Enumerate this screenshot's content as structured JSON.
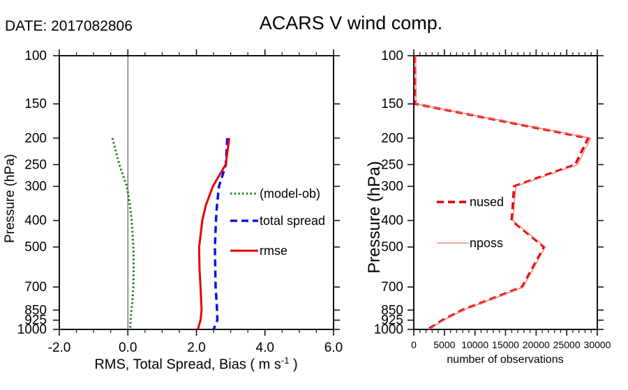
{
  "header": {
    "date_label": "DATE: 2017082806",
    "title": "ACARS V wind comp."
  },
  "chart_data": [
    {
      "type": "line",
      "id": "left-panel",
      "xlabel_parts": {
        "main": "RMS, Total Spread, Bias ( m s",
        "sup": "-1",
        "end": " )"
      },
      "ylabel": "Pressure (hPa)",
      "x_axis": {
        "min": -2.0,
        "max": 6.0,
        "major_step": 2.0,
        "minor_step": 0.5,
        "tick_values": [
          -2.0,
          0.0,
          2.0,
          4.0,
          6.0
        ],
        "tick_labels": [
          "-2.0",
          "0.0",
          "2.0",
          "4.0",
          "6.0"
        ]
      },
      "y_axis": {
        "scale": "log",
        "min": 100,
        "max": 1000,
        "tick_values": [
          100,
          150,
          200,
          250,
          300,
          400,
          500,
          700,
          850,
          925,
          1000
        ],
        "tick_labels": [
          "100",
          "150",
          "200",
          "250",
          "300",
          "400",
          "500",
          "700",
          "850",
          "925",
          "1000"
        ]
      },
      "reference_line_x": 0.0,
      "series": [
        {
          "name": "(model-ob)",
          "color": "#1e8022",
          "style": "dotted",
          "width": 3,
          "pressure": [
            200,
            250,
            300,
            350,
            400,
            500,
            600,
            700,
            800,
            850,
            925,
            1000
          ],
          "values": [
            -0.45,
            -0.25,
            -0.03,
            0.06,
            0.11,
            0.16,
            0.17,
            0.16,
            0.13,
            0.1,
            0.08,
            0.06
          ]
        },
        {
          "name": "total spread",
          "color": "#0f0fe8",
          "style": "dashed",
          "width": 3.5,
          "pressure": [
            200,
            250,
            300,
            350,
            400,
            500,
            600,
            700,
            800,
            850,
            925,
            1000
          ],
          "values": [
            2.9,
            2.86,
            2.66,
            2.6,
            2.57,
            2.54,
            2.55,
            2.56,
            2.59,
            2.6,
            2.61,
            2.5
          ]
        },
        {
          "name": "rmse",
          "color": "#e60000",
          "style": "solid",
          "width": 3,
          "pressure": [
            200,
            250,
            300,
            350,
            400,
            500,
            600,
            700,
            800,
            850,
            925,
            1000
          ],
          "values": [
            2.96,
            2.85,
            2.48,
            2.28,
            2.17,
            2.08,
            2.09,
            2.12,
            2.14,
            2.15,
            2.12,
            2.04
          ]
        }
      ]
    },
    {
      "type": "line",
      "id": "right-panel",
      "xlabel": "number of observations",
      "ylabel": "Pressure (hPa)",
      "x_axis": {
        "min": 0,
        "max": 30000,
        "major_step": 5000,
        "minor_step": 1000,
        "tick_values": [
          0,
          5000,
          10000,
          15000,
          20000,
          25000,
          30000
        ],
        "tick_labels": [
          "0",
          "5000",
          "10000",
          "15000",
          "20000",
          "25000",
          "30000"
        ]
      },
      "y_axis": {
        "scale": "log",
        "min": 100,
        "max": 1000,
        "tick_values": [
          100,
          150,
          200,
          250,
          300,
          400,
          500,
          700,
          850,
          925,
          1000
        ],
        "tick_labels": [
          "100",
          "150",
          "200",
          "250",
          "300",
          "400",
          "500",
          "700",
          "850",
          "925",
          "1000"
        ]
      },
      "reference_line_x": null,
      "series": [
        {
          "name": "nused",
          "color": "#e60000",
          "style": "dashed",
          "width": 3.5,
          "pressure": [
            100,
            150,
            200,
            250,
            300,
            400,
            500,
            700,
            850,
            925,
            1000
          ],
          "values": [
            200,
            250,
            28500,
            26400,
            16400,
            16000,
            21300,
            17700,
            7900,
            4700,
            2300
          ]
        },
        {
          "name": "nposs",
          "color": "#f2736b",
          "style": "solid",
          "width": 1.3,
          "pressure": [
            100,
            150,
            200,
            250,
            300,
            400,
            500,
            700,
            850,
            925,
            1000
          ],
          "values": [
            300,
            350,
            28900,
            26800,
            16700,
            16200,
            21500,
            17900,
            8100,
            4900,
            2500
          ]
        }
      ]
    }
  ]
}
